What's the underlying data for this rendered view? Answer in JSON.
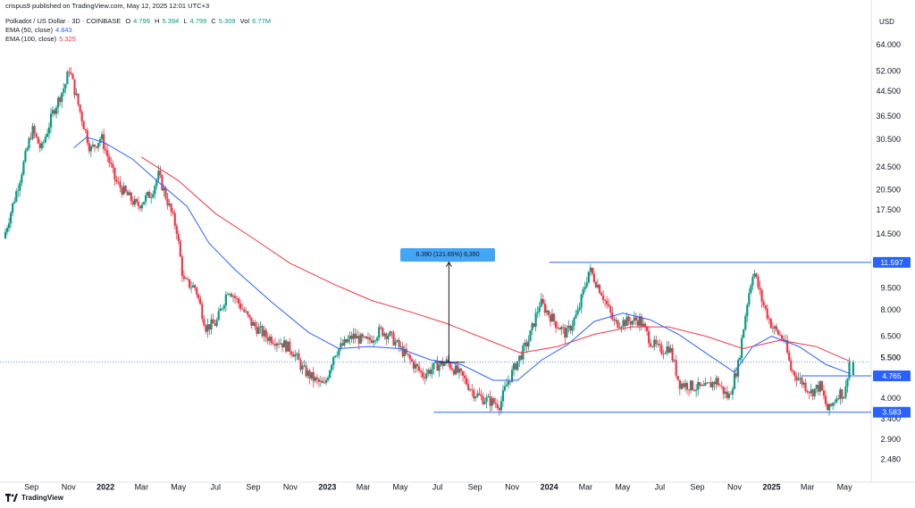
{
  "header": {
    "published": "crispus9 published on TradingView.com, May 12, 2025 12:01 UTC+3",
    "symbol": "Polkadot / US Dollar · 3D · COINBASE",
    "o_label": "O",
    "o_value": "4.799",
    "h_label": "H",
    "h_value": "5.394",
    "l_label": "L",
    "l_value": "4.799",
    "c_label": "C",
    "c_value": "5.309",
    "vol_label": "Vol",
    "vol_value": "6.77M",
    "ema50_label": "EMA (50, close)",
    "ema50_value": "4.843",
    "ema100_label": "EMA (100, close)",
    "ema100_value": "5.325"
  },
  "footer": {
    "brand": "TradingView"
  },
  "colors": {
    "up": "#089981",
    "down": "#f23645",
    "ema50": "#2962ff",
    "ema100": "#f23645",
    "level": "#2962ff",
    "measure": "#42a5f5"
  },
  "chart_data": {
    "type": "candlestick",
    "title": "Polkadot / US Dollar · 3D · COINBASE",
    "currency": "USD",
    "y_scale": "log",
    "ylim": [
      2.35,
      80
    ],
    "y_ticks": [
      "64.000",
      "52.000",
      "44.500",
      "36.500",
      "30.500",
      "24.500",
      "20.500",
      "17.500",
      "14.500",
      "11.597",
      "9.500",
      "8.000",
      "6.500",
      "5.500",
      "4.765",
      "4.000",
      "3.583",
      "3.400",
      "2.900",
      "2.480"
    ],
    "y_tick_values": [
      64,
      52,
      44.5,
      36.5,
      30.5,
      24.5,
      20.5,
      17.5,
      14.5,
      11.597,
      9.5,
      8,
      6.5,
      5.5,
      4.765,
      4,
      3.583,
      3.4,
      2.9,
      2.48
    ],
    "highlighted_levels": [
      11.597,
      4.765,
      3.583
    ],
    "x_labels": [
      "Sep",
      "Nov",
      "2022",
      "Mar",
      "May",
      "Jul",
      "Sep",
      "Nov",
      "2023",
      "Mar",
      "May",
      "Jul",
      "Sep",
      "Nov",
      "2024",
      "Mar",
      "May",
      "Jul",
      "Sep",
      "Nov",
      "2025",
      "Mar",
      "May"
    ],
    "x_label_dates": [
      "2021-09-01",
      "2021-11-01",
      "2022-01-01",
      "2022-03-01",
      "2022-05-01",
      "2022-07-01",
      "2022-09-01",
      "2022-11-01",
      "2023-01-01",
      "2023-03-01",
      "2023-05-01",
      "2023-07-01",
      "2023-09-01",
      "2023-11-01",
      "2024-01-01",
      "2024-03-01",
      "2024-05-01",
      "2024-07-01",
      "2024-09-01",
      "2024-11-01",
      "2025-01-01",
      "2025-03-01",
      "2025-05-01"
    ],
    "price_path": [
      [
        "2021-07-20",
        14.0
      ],
      [
        "2021-08-15",
        22.0
      ],
      [
        "2021-09-05",
        33.0
      ],
      [
        "2021-09-20",
        28.0
      ],
      [
        "2021-10-10",
        38.0
      ],
      [
        "2021-11-01",
        48.0
      ],
      [
        "2021-11-04",
        54.0
      ],
      [
        "2021-11-20",
        40.0
      ],
      [
        "2021-12-10",
        28.0
      ],
      [
        "2021-12-28",
        31.0
      ],
      [
        "2022-01-20",
        22.0
      ],
      [
        "2022-02-05",
        20.0
      ],
      [
        "2022-02-25",
        18.0
      ],
      [
        "2022-03-20",
        20.0
      ],
      [
        "2022-04-01",
        23.0
      ],
      [
        "2022-04-15",
        19.0
      ],
      [
        "2022-05-01",
        15.0
      ],
      [
        "2022-05-12",
        10.0
      ],
      [
        "2022-06-01",
        9.5
      ],
      [
        "2022-06-18",
        7.0
      ],
      [
        "2022-07-05",
        7.2
      ],
      [
        "2022-07-25",
        9.5
      ],
      [
        "2022-08-10",
        8.5
      ],
      [
        "2022-09-01",
        7.2
      ],
      [
        "2022-09-25",
        6.5
      ],
      [
        "2022-10-20",
        6.2
      ],
      [
        "2022-11-08",
        5.8
      ],
      [
        "2022-11-25",
        5.0
      ],
      [
        "2022-12-15",
        4.6
      ],
      [
        "2022-12-30",
        4.4
      ],
      [
        "2023-01-15",
        5.7
      ],
      [
        "2023-02-15",
        6.5
      ],
      [
        "2023-03-10",
        6.2
      ],
      [
        "2023-04-01",
        6.8
      ],
      [
        "2023-04-15",
        6.6
      ],
      [
        "2023-05-10",
        5.7
      ],
      [
        "2023-06-10",
        4.8
      ],
      [
        "2023-07-05",
        5.2
      ],
      [
        "2023-07-20",
        5.3
      ],
      [
        "2023-08-15",
        4.7
      ],
      [
        "2023-09-01",
        4.2
      ],
      [
        "2023-09-15",
        4.0
      ],
      [
        "2023-10-15",
        3.8
      ],
      [
        "2023-10-25",
        4.4
      ],
      [
        "2023-11-10",
        5.2
      ],
      [
        "2023-12-01",
        6.3
      ],
      [
        "2023-12-20",
        8.5
      ],
      [
        "2024-01-15",
        7.2
      ],
      [
        "2024-02-01",
        6.6
      ],
      [
        "2024-02-20",
        7.8
      ],
      [
        "2024-03-10",
        11.0
      ],
      [
        "2024-03-30",
        9.2
      ],
      [
        "2024-04-20",
        7.2
      ],
      [
        "2024-05-10",
        7.3
      ],
      [
        "2024-06-01",
        7.4
      ],
      [
        "2024-06-20",
        6.2
      ],
      [
        "2024-07-05",
        5.8
      ],
      [
        "2024-07-20",
        6.0
      ],
      [
        "2024-08-05",
        4.5
      ],
      [
        "2024-08-25",
        4.4
      ],
      [
        "2024-09-15",
        4.3
      ],
      [
        "2024-10-05",
        4.6
      ],
      [
        "2024-10-25",
        4.0
      ],
      [
        "2024-11-10",
        5.2
      ],
      [
        "2024-11-25",
        8.5
      ],
      [
        "2024-12-05",
        11.0
      ],
      [
        "2024-12-20",
        8.5
      ],
      [
        "2025-01-05",
        7.0
      ],
      [
        "2025-01-25",
        6.3
      ],
      [
        "2025-02-05",
        5.0
      ],
      [
        "2025-02-25",
        4.5
      ],
      [
        "2025-03-10",
        4.2
      ],
      [
        "2025-03-25",
        4.4
      ],
      [
        "2025-04-07",
        3.6
      ],
      [
        "2025-04-25",
        4.2
      ],
      [
        "2025-05-05",
        4.1
      ],
      [
        "2025-05-11",
        5.31
      ]
    ],
    "ema50_path": [
      [
        "2021-11-10",
        28.5
      ],
      [
        "2021-12-01",
        31.0
      ],
      [
        "2022-01-01",
        29.5
      ],
      [
        "2022-02-15",
        26.0
      ],
      [
        "2022-04-01",
        21.5
      ],
      [
        "2022-05-15",
        18.0
      ],
      [
        "2022-06-20",
        13.5
      ],
      [
        "2022-08-01",
        11.0
      ],
      [
        "2022-10-01",
        8.5
      ],
      [
        "2022-12-01",
        6.7
      ],
      [
        "2023-01-20",
        5.9
      ],
      [
        "2023-03-10",
        6.0
      ],
      [
        "2023-05-01",
        5.9
      ],
      [
        "2023-06-20",
        5.4
      ],
      [
        "2023-08-10",
        5.2
      ],
      [
        "2023-10-01",
        4.6
      ],
      [
        "2023-11-10",
        4.6
      ],
      [
        "2023-12-20",
        5.4
      ],
      [
        "2024-02-01",
        6.1
      ],
      [
        "2024-03-15",
        7.3
      ],
      [
        "2024-05-01",
        7.8
      ],
      [
        "2024-06-15",
        7.4
      ],
      [
        "2024-08-01",
        6.6
      ],
      [
        "2024-09-15",
        5.7
      ],
      [
        "2024-11-01",
        4.9
      ],
      [
        "2024-12-01",
        6.0
      ],
      [
        "2025-01-01",
        6.5
      ],
      [
        "2025-02-15",
        6.0
      ],
      [
        "2025-04-01",
        5.2
      ],
      [
        "2025-05-11",
        4.843
      ]
    ],
    "ema100_path": [
      [
        "2022-03-01",
        26.5
      ],
      [
        "2022-05-01",
        22.0
      ],
      [
        "2022-07-01",
        17.0
      ],
      [
        "2022-09-01",
        14.0
      ],
      [
        "2022-11-01",
        11.5
      ],
      [
        "2023-01-15",
        9.7
      ],
      [
        "2023-03-15",
        8.6
      ],
      [
        "2023-05-15",
        7.9
      ],
      [
        "2023-07-15",
        7.2
      ],
      [
        "2023-09-15",
        6.4
      ],
      [
        "2023-11-15",
        5.7
      ],
      [
        "2024-01-15",
        6.0
      ],
      [
        "2024-03-15",
        6.6
      ],
      [
        "2024-05-15",
        7.0
      ],
      [
        "2024-07-15",
        7.0
      ],
      [
        "2024-09-15",
        6.5
      ],
      [
        "2024-11-15",
        5.9
      ],
      [
        "2025-01-15",
        6.3
      ],
      [
        "2025-03-15",
        6.0
      ],
      [
        "2025-05-11",
        5.325
      ]
    ],
    "levels": [
      {
        "value": 11.597,
        "label": "11.597",
        "from": "2024-01-01"
      },
      {
        "value": 3.583,
        "label": "3.583",
        "from": "2023-06-25"
      },
      {
        "value": 4.765,
        "label": "4.765",
        "from": "2025-02-20"
      }
    ],
    "current_price_line": 5.309,
    "measure": {
      "from": 5.3,
      "to": 11.7,
      "date": "2023-07-20",
      "label": "6.390 (121.65%) 6,390"
    }
  }
}
